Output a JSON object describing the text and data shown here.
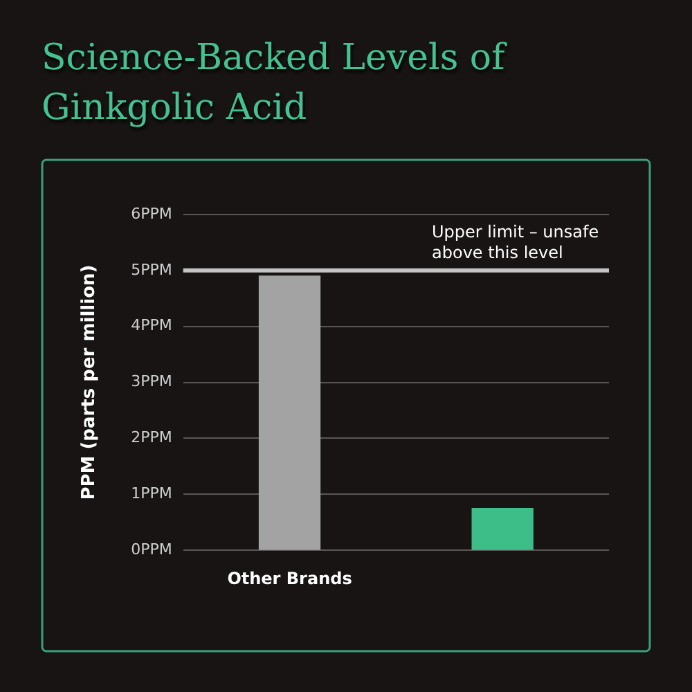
{
  "chart_data": {
    "type": "bar",
    "title": "Science-Backed Levels of Ginkgolic Acid",
    "ylabel": "PPM (parts per million)",
    "categories": [
      "Other Brands",
      null
    ],
    "values": [
      4.9,
      0.75
    ],
    "colors": [
      "#a3a3a3",
      "#3dbe88"
    ],
    "ylim": [
      0,
      6
    ],
    "yticks": [
      {
        "value": 0,
        "label": "0PPM"
      },
      {
        "value": 1,
        "label": "1PPM"
      },
      {
        "value": 2,
        "label": "2PPM"
      },
      {
        "value": 3,
        "label": "3PPM"
      },
      {
        "value": 4,
        "label": "4PPM"
      },
      {
        "value": 5,
        "label": "5PPM"
      },
      {
        "value": 6,
        "label": "6PPM"
      }
    ],
    "grid": "y",
    "legend": false,
    "ref_lines": [
      {
        "axis": "y",
        "value": 5,
        "label": "Upper limit – unsafe above this level",
        "color": "#c4c4c4"
      }
    ]
  }
}
